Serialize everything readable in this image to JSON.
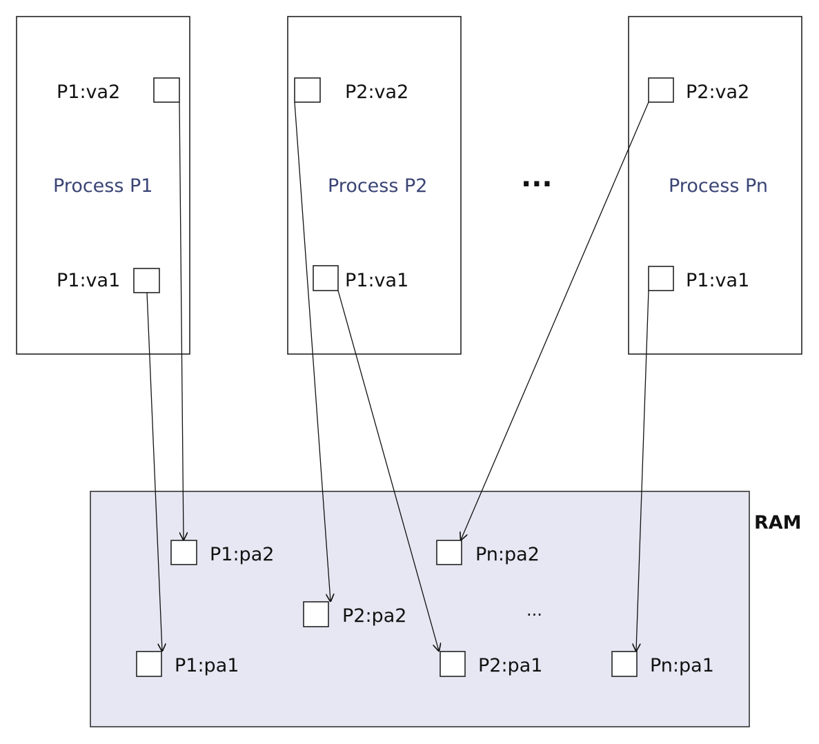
{
  "colors": {
    "process_label": "#3b4475",
    "ram_fill": "#e6e7f2"
  },
  "processes": {
    "p1": {
      "name": "Process P1",
      "top_label": "P1:va2",
      "bottom_label": "P1:va1"
    },
    "p2": {
      "name": "Process P2",
      "top_label": "P2:va2",
      "bottom_label": "P1:va1"
    },
    "pn": {
      "name": "Process Pn",
      "top_label": "P2:va2",
      "bottom_label": "P1:va1"
    }
  },
  "separator": "...",
  "ram": {
    "title": "RAM",
    "ellipsis": "...",
    "cells": {
      "p1_pa2": "P1:pa2",
      "p1_pa1": "P1:pa1",
      "p2_pa2": "P2:pa2",
      "p2_pa1": "P2:pa1",
      "pn_pa2": "Pn:pa2",
      "pn_pa1": "Pn:pa1"
    }
  }
}
